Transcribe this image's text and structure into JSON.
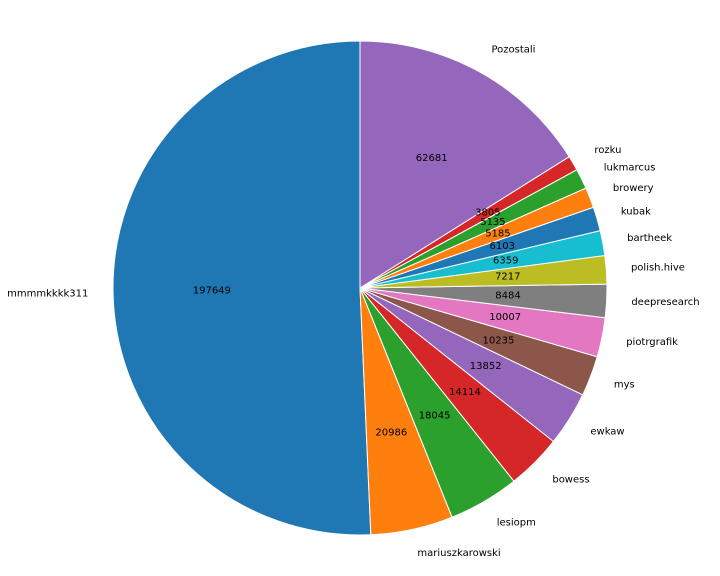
{
  "chart_data": {
    "type": "pie",
    "categories": [
      "mmmmkkkk311",
      "mariuszkarowski",
      "lesiopm",
      "bowess",
      "ewkaw",
      "mys",
      "piotrgrafik",
      "deepresearch",
      "polish.hive",
      "bartheek",
      "kubak",
      "browery",
      "lukmarcus",
      "rozku",
      "Pozostali"
    ],
    "values": [
      197649,
      20986,
      18045,
      14114,
      13852,
      10235,
      10007,
      8484,
      7217,
      6359,
      6103,
      5185,
      5135,
      3805,
      62681
    ],
    "value_labels": [
      "197649",
      "20986",
      "18045",
      "14114",
      "13852",
      "10235",
      "10007",
      "8484",
      "7217",
      "6359",
      "6103",
      "5185",
      "5135",
      "3805",
      "62681"
    ],
    "colors": [
      "#1f77b4",
      "#ff7f0e",
      "#2ca02c",
      "#d62728",
      "#9467bd",
      "#8c564b",
      "#e377c2",
      "#7f7f7f",
      "#bcbd22",
      "#17becf",
      "#1f77b4",
      "#ff7f0e",
      "#2ca02c",
      "#d62728",
      "#9467bd"
    ],
    "start_angle": "top (12 o'clock)",
    "direction": "counterclockwise",
    "title": ""
  }
}
